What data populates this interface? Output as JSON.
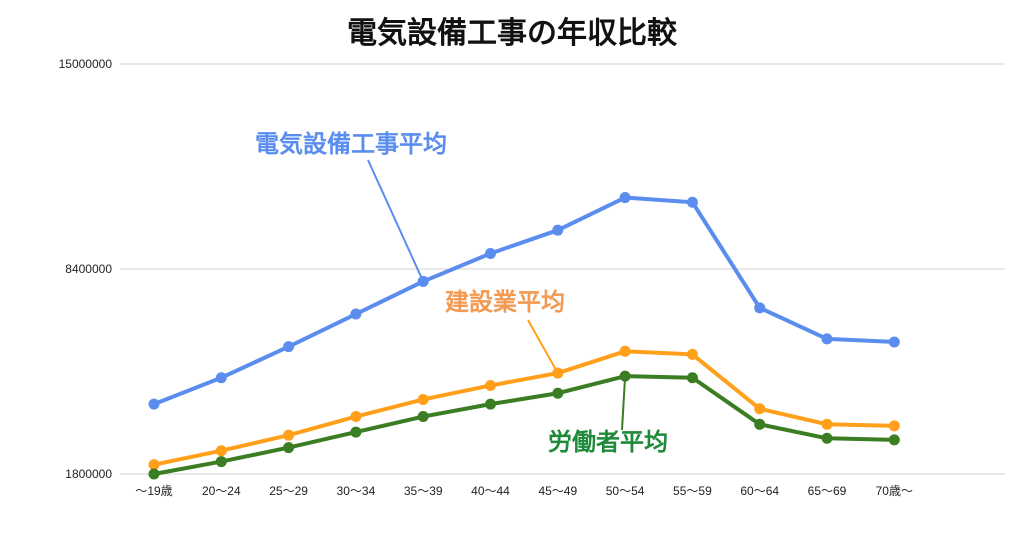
{
  "chart_data": {
    "type": "line",
    "title": "電気設備工事の年収比較",
    "xlabel": "",
    "ylabel": "",
    "categories": [
      "〜19歳",
      "20〜24",
      "25〜29",
      "30〜34",
      "35〜39",
      "40〜44",
      "45〜49",
      "50〜54",
      "55〜59",
      "60〜64",
      "65〜69",
      "70歳〜"
    ],
    "ylim": [
      1800000,
      15000000
    ],
    "yticks": [
      1800000,
      8400000,
      15000000
    ],
    "ytick_labels": [
      "1800000",
      "8400000",
      "15000000"
    ],
    "grid": true,
    "series": [
      {
        "name": "電気設備工事平均",
        "color": "#5b8def",
        "values": [
          4050000,
          4900000,
          5900000,
          6950000,
          8000000,
          8900000,
          9650000,
          10700000,
          10550000,
          7150000,
          6150000,
          6050000
        ]
      },
      {
        "name": "建設業平均",
        "color": "#ff9f1a",
        "values": [
          2100000,
          2550000,
          3050000,
          3650000,
          4200000,
          4650000,
          5050000,
          5750000,
          5650000,
          3900000,
          3400000,
          3350000
        ]
      },
      {
        "name": "労働者平均",
        "color": "#3a7d22",
        "values": [
          1800000,
          2200000,
          2650000,
          3150000,
          3650000,
          4050000,
          4400000,
          4950000,
          4900000,
          3400000,
          2950000,
          2900000
        ]
      }
    ],
    "series_label_colors": [
      "#5b8def",
      "#f29a52",
      "#1f8a3a"
    ]
  }
}
